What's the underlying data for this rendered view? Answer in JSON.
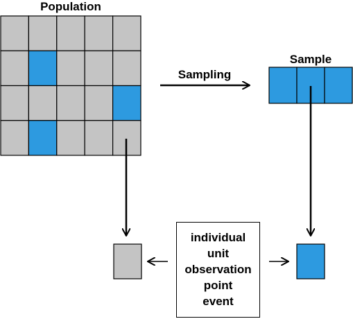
{
  "population": {
    "label": "Population",
    "rows": 4,
    "cols": 5,
    "highlighted_cells": [
      [
        1,
        1
      ],
      [
        2,
        4
      ],
      [
        3,
        1
      ]
    ]
  },
  "sampling": {
    "label": "Sampling"
  },
  "sample": {
    "label": "Sample",
    "cells": 3
  },
  "definition": {
    "terms": [
      "individual",
      "unit",
      "observation",
      "point",
      "event"
    ]
  },
  "colors": {
    "population_cell": "#c4c4c4",
    "highlight_cell": "#2d9ae0",
    "grid_line": "#000000",
    "arrow": "#000000"
  }
}
